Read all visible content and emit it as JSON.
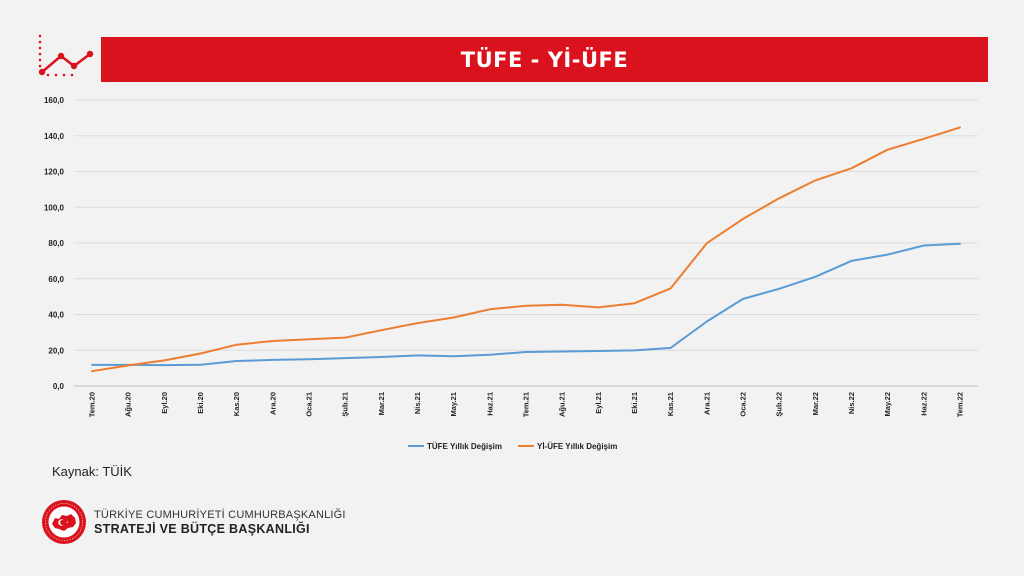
{
  "header": {
    "title": "TÜFE - Yİ-ÜFE"
  },
  "source": {
    "label": "Kaynak: TÜİK"
  },
  "org": {
    "line1": "TÜRKİYE CUMHURİYETİ CUMHURBAŞKANLIĞI",
    "line2": "STRATEJİ VE BÜTÇE BAŞKANLIĞI",
    "seal_text": "T.C. CUMHURBAŞKANLIĞI STRATEJİ VE BÜTÇE BAŞKANLIĞI"
  },
  "colors": {
    "banner": "#d9121d",
    "tufe": "#5b9bd5",
    "yiufe": "#ed7d31",
    "seal": "#d9121d"
  },
  "chart_data": {
    "type": "line",
    "title": "TÜFE - Yİ-ÜFE",
    "xlabel": "",
    "ylabel": "",
    "ylim": [
      0,
      160
    ],
    "yticks": [
      0,
      20,
      40,
      60,
      80,
      100,
      120,
      140,
      160
    ],
    "ytick_labels": [
      "0,0",
      "20,0",
      "40,0",
      "60,0",
      "80,0",
      "100,0",
      "120,0",
      "140,0",
      "160,0"
    ],
    "grid": true,
    "legend_position": "bottom",
    "categories": [
      "Tem.20",
      "Ağu.20",
      "Eyl.20",
      "Eki.20",
      "Kas.20",
      "Ara.20",
      "Oca.21",
      "Şub.21",
      "Mar.21",
      "Nis.21",
      "May.21",
      "Haz.21",
      "Tem.21",
      "Ağu.21",
      "Eyl.21",
      "Eki.21",
      "Kas.21",
      "Ara.21",
      "Oca.22",
      "Şub.22",
      "Mar.22",
      "Nis.22",
      "May.22",
      "Haz.22",
      "Tem.22"
    ],
    "series": [
      {
        "name": "TÜFE Yıllık Değişim",
        "color": "#5b9bd5",
        "values": [
          11.8,
          11.8,
          11.7,
          11.9,
          14.0,
          14.6,
          15.0,
          15.6,
          16.2,
          17.1,
          16.6,
          17.5,
          19.0,
          19.3,
          19.6,
          19.9,
          21.3,
          36.1,
          48.7,
          54.4,
          61.1,
          70.0,
          73.5,
          78.6,
          79.6
        ]
      },
      {
        "name": "Yİ-ÜFE Yıllık Değişim",
        "color": "#ed7d31",
        "values": [
          8.3,
          11.5,
          14.3,
          18.2,
          23.1,
          25.2,
          26.2,
          27.1,
          31.2,
          35.2,
          38.3,
          42.9,
          44.9,
          45.5,
          44.0,
          46.3,
          54.6,
          79.9,
          93.5,
          105.0,
          115.0,
          121.8,
          132.2,
          138.3,
          144.6
        ]
      }
    ]
  }
}
